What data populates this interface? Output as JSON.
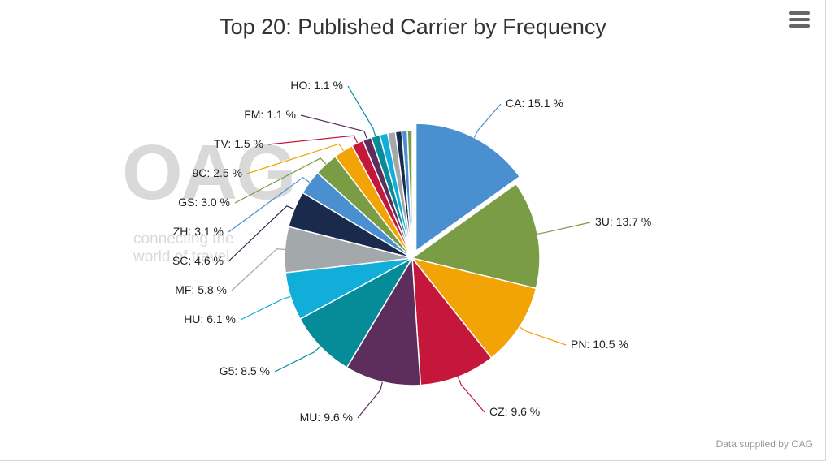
{
  "chart_data": {
    "type": "pie",
    "title": "Top 20: Published Carrier by Frequency",
    "slices": [
      {
        "label": "CA",
        "value": 15.1,
        "display": "CA: 15.1 %",
        "color": "#4a8fcf",
        "exploded": true
      },
      {
        "label": "3U",
        "value": 13.7,
        "display": "3U: 13.7 %",
        "color": "#7a9c44"
      },
      {
        "label": "PN",
        "value": 10.5,
        "display": "PN: 10.5 %",
        "color": "#f2a407"
      },
      {
        "label": "CZ",
        "value": 9.6,
        "display": "CZ: 9.6 %",
        "color": "#c5173c"
      },
      {
        "label": "MU",
        "value": 9.6,
        "display": "MU: 9.6 %",
        "color": "#5d2e5c"
      },
      {
        "label": "G5",
        "value": 8.5,
        "display": "G5: 8.5 %",
        "color": "#068b98"
      },
      {
        "label": "HU",
        "value": 6.1,
        "display": "HU: 6.1 %",
        "color": "#11aed9"
      },
      {
        "label": "MF",
        "value": 5.8,
        "display": "MF: 5.8 %",
        "color": "#a3a8ab"
      },
      {
        "label": "SC",
        "value": 4.6,
        "display": "SC: 4.6 %",
        "color": "#1a2a4c"
      },
      {
        "label": "ZH",
        "value": 3.1,
        "display": "ZH: 3.1 %",
        "color": "#4a8fcf"
      },
      {
        "label": "GS",
        "value": 3.0,
        "display": "GS: 3.0 %",
        "color": "#7a9c44"
      },
      {
        "label": "9C",
        "value": 2.5,
        "display": "9C: 2.5 %",
        "color": "#f2a407"
      },
      {
        "label": "TV",
        "value": 1.5,
        "display": "TV: 1.5 %",
        "color": "#c5173c"
      },
      {
        "label": "FM",
        "value": 1.1,
        "display": "FM: 1.1 %",
        "color": "#5d2e5c"
      },
      {
        "label": "HO",
        "value": 1.1,
        "display": "HO: 1.1 %",
        "color": "#068b98"
      },
      {
        "label": "",
        "value": 1.0,
        "display": "",
        "color": "#11aed9"
      },
      {
        "label": "",
        "value": 1.0,
        "display": "",
        "color": "#a3a8ab"
      },
      {
        "label": "",
        "value": 0.8,
        "display": "",
        "color": "#1a2a4c"
      },
      {
        "label": "",
        "value": 0.7,
        "display": "",
        "color": "#4a8fcf"
      },
      {
        "label": "",
        "value": 0.6,
        "display": "",
        "color": "#7a9c44"
      }
    ],
    "legend": "none",
    "data_labels": "outside-with-connectors"
  },
  "watermark": {
    "logo": "OAG",
    "tagline1": "connecting the",
    "tagline2": "world of travel"
  },
  "credit": "Data supplied by OAG",
  "menu": {
    "icon": "hamburger-menu-icon"
  }
}
